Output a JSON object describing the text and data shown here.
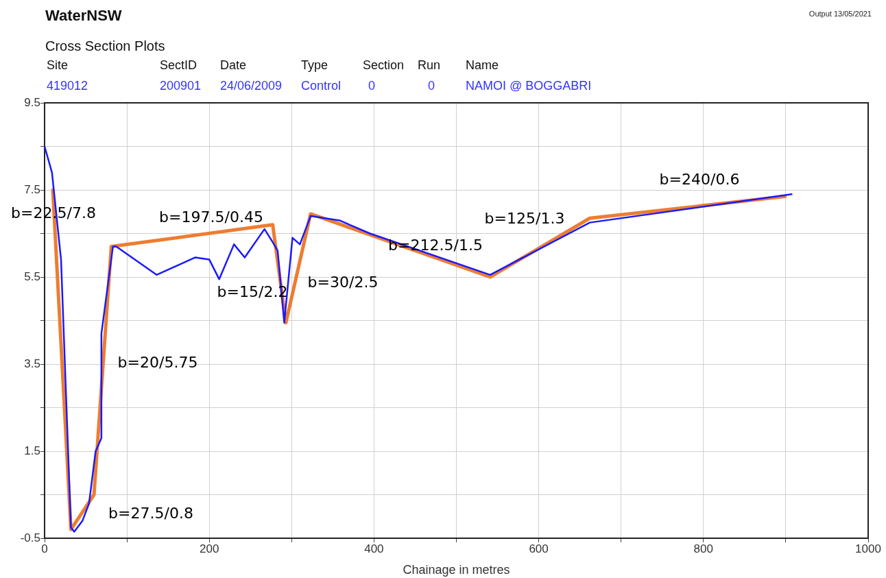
{
  "chart_data": {
    "type": "line",
    "title": "WaterNSW",
    "subtitle": "Cross Section Plots",
    "xlabel": "Chainage in metres",
    "xlim": [
      0,
      1000
    ],
    "xticks": [
      0,
      {
        "value": 100,
        "label": null
      },
      200,
      {
        "value": 300,
        "label": null
      },
      400,
      {
        "value": 500,
        "label": null
      },
      600,
      {
        "value": 700,
        "label": null
      },
      800,
      {
        "value": 900,
        "label": null
      },
      1000
    ],
    "ylim": [
      -0.5,
      9.5
    ],
    "yticks": [
      -0.5,
      {
        "value": 0.5,
        "label": null
      },
      1.5,
      {
        "value": 2.5,
        "label": null
      },
      3.5,
      {
        "value": 4.5,
        "label": null
      },
      5.5,
      {
        "value": 6.5,
        "label": null
      },
      7.5,
      {
        "value": 8.5,
        "label": null
      },
      9.5
    ],
    "grid": true,
    "legend": false,
    "marker": "none",
    "line_style": "solid",
    "series": [
      {
        "color": "#1a1aff",
        "x": [
          0,
          9,
          20,
          32,
          36,
          46,
          54,
          62,
          69,
          69,
          83,
          87,
          136,
          183,
          200,
          212,
          230,
          243,
          267,
          277,
          283,
          291,
          301,
          310,
          323,
          358,
          395,
          541,
          662,
          907
        ],
        "values": [
          8.5,
          7.9,
          5.9,
          -0.25,
          -0.35,
          -0.1,
          0.3,
          1.5,
          1.8,
          4.2,
          6.2,
          6.2,
          5.55,
          5.95,
          5.9,
          5.45,
          6.25,
          5.95,
          6.6,
          6.3,
          6.1,
          4.45,
          6.4,
          6.25,
          6.9,
          6.8,
          6.5,
          5.55,
          6.75,
          7.4
        ]
      },
      {
        "color": "#ed7d31",
        "x": [
          10,
          32,
          60,
          81,
          277,
          293,
          323,
          541,
          662,
          899
        ],
        "values": [
          7.5,
          -0.3,
          0.5,
          6.2,
          6.7,
          4.45,
          6.95,
          5.5,
          6.85,
          7.35
        ]
      }
    ],
    "annotations": [
      "Output 13/05/2021",
      "Site",
      "SectID",
      "Date",
      "Type",
      "Section",
      "Run",
      "Name",
      "419012",
      "200901",
      "24/06/2009",
      "Control",
      "0",
      "0",
      "NAMOI @ BOGGABRI",
      "b=22.5/7.8",
      "b=197.5/0.45",
      "b=15/2.2",
      "b=30/2.5",
      "b=212.5/1.5",
      "b=125/1.3",
      "b=240/0.6",
      "b=20/5.75",
      "b=27.5/0.8"
    ]
  }
}
